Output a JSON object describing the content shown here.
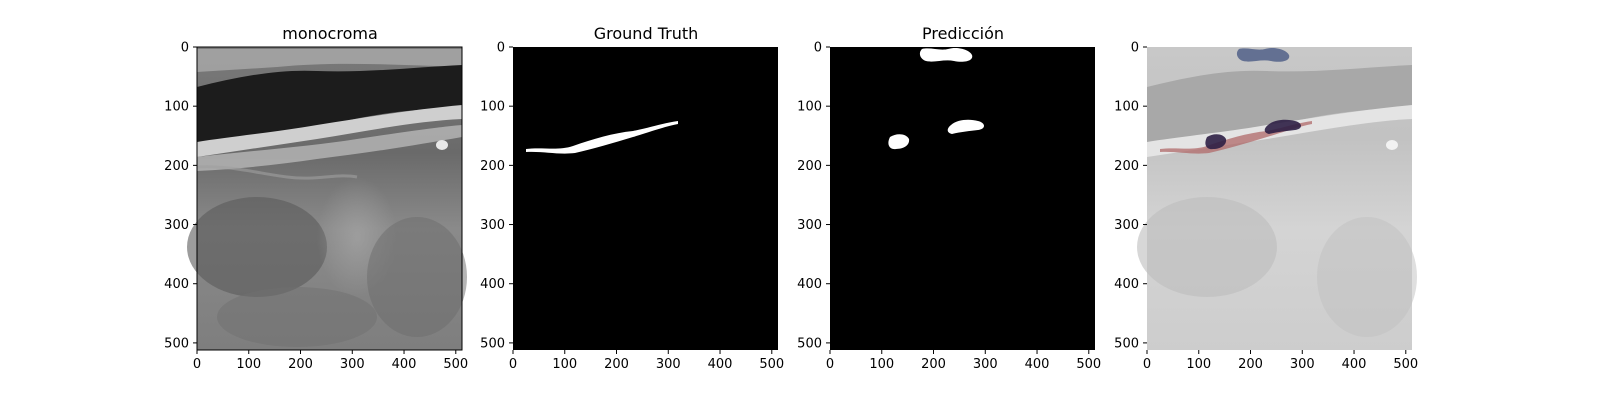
{
  "figure": {
    "panels": [
      {
        "key": "original",
        "title": "monocroma"
      },
      {
        "key": "ground_truth",
        "title": "Ground Truth"
      },
      {
        "key": "prediction",
        "title": "Predicción"
      },
      {
        "key": "overlay",
        "title": ""
      }
    ],
    "x_ticks": [
      "0",
      "100",
      "200",
      "300",
      "400",
      "500"
    ],
    "y_ticks": [
      "0",
      "100",
      "200",
      "300",
      "400",
      "500"
    ],
    "image_size": [
      512,
      512
    ],
    "colors": {
      "mask_fill": "#ffffff",
      "mask_background": "#000000",
      "gt_overlay": "#b06a6a",
      "pred_overlay": "#2a3a6a",
      "overlap": "#2e1f45"
    }
  }
}
